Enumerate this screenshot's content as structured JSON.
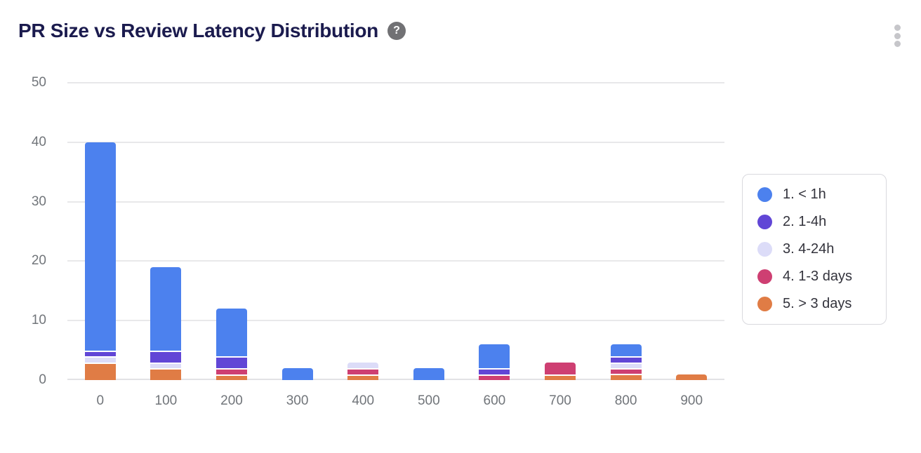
{
  "header": {
    "title": "PR Size vs Review Latency Distribution",
    "help_glyph": "?"
  },
  "colors": {
    "title_text": "#1b1b4e",
    "axis_label": "#71757a",
    "gridline": "#e8e8ea",
    "legend_border": "#d9d9de",
    "legend_text": "#33333c",
    "help_icon_bg": "#717174",
    "kebab_dots": "#c6c6ca"
  },
  "chart_data": {
    "type": "bar",
    "stacked": true,
    "title": "PR Size vs Review Latency Distribution",
    "xlabel": "",
    "ylabel": "",
    "categories": [
      "0",
      "100",
      "200",
      "300",
      "400",
      "500",
      "600",
      "700",
      "800",
      "900"
    ],
    "series": [
      {
        "name": "1. < 1h",
        "color": "#4c81ee",
        "values": [
          35,
          14,
          8,
          2,
          0,
          2,
          4,
          0,
          2,
          0
        ]
      },
      {
        "name": "2. 1-4h",
        "color": "#6146d6",
        "values": [
          1,
          2,
          2,
          0,
          0,
          0,
          1,
          0,
          1,
          0
        ]
      },
      {
        "name": "3. 4-24h",
        "color": "#dcdcf8",
        "values": [
          1,
          1,
          0,
          0,
          1,
          0,
          0,
          0,
          1,
          0
        ]
      },
      {
        "name": "4. 1-3 days",
        "color": "#ce3f72",
        "values": [
          0,
          0,
          1,
          0,
          1,
          0,
          1,
          2,
          1,
          0
        ]
      },
      {
        "name": "5. > 3 days",
        "color": "#e07c45",
        "values": [
          3,
          2,
          1,
          0,
          1,
          0,
          0,
          1,
          1,
          1
        ]
      }
    ],
    "stack_order_bottom_to_top": [
      "5. > 3 days",
      "4. 1-3 days",
      "3. 4-24h",
      "2. 1-4h",
      "1. < 1h"
    ],
    "totals": [
      40,
      19,
      12,
      2,
      3,
      2,
      6,
      3,
      6,
      1
    ],
    "y_ticks": [
      0,
      10,
      20,
      30,
      40,
      50
    ],
    "ylim": [
      0,
      50
    ],
    "grid": true,
    "legend_position": "right"
  }
}
